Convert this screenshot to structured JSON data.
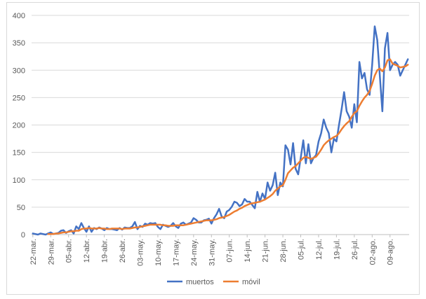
{
  "chart_data": {
    "type": "line",
    "title": "",
    "xlabel": "",
    "ylabel": "",
    "ylim": [
      0,
      400
    ],
    "yticks": [
      0,
      50,
      100,
      150,
      200,
      250,
      300,
      350,
      400
    ],
    "grid": true,
    "legend_position": "bottom",
    "x_start": "22-mar.",
    "x_tick_labels": [
      "22-mar.",
      "29-mar.",
      "05-abr.",
      "12-abr.",
      "19-abr.",
      "26-abr.",
      "03-may.",
      "10-may.",
      "17-may.",
      "24-may.",
      "31-may.",
      "07-jun.",
      "14-jun.",
      "21-jun.",
      "28-jun.",
      "05-jul.",
      "12-jul.",
      "19-jul.",
      "26-jul.",
      "02-ago.",
      "09-ago."
    ],
    "series": [
      {
        "name": "muertos",
        "color": "#4472c4",
        "values": [
          2,
          1,
          0,
          2,
          1,
          0,
          2,
          4,
          1,
          2,
          3,
          7,
          8,
          3,
          6,
          8,
          2,
          15,
          10,
          21,
          12,
          5,
          15,
          5,
          12,
          10,
          13,
          11,
          8,
          12,
          10,
          10,
          9,
          8,
          12,
          9,
          13,
          12,
          12,
          15,
          23,
          10,
          16,
          14,
          20,
          18,
          21,
          20,
          21,
          14,
          10,
          18,
          16,
          14,
          16,
          21,
          15,
          12,
          20,
          22,
          18,
          20,
          22,
          30,
          27,
          22,
          22,
          26,
          27,
          29,
          20,
          30,
          37,
          47,
          33,
          30,
          42,
          45,
          51,
          60,
          58,
          52,
          55,
          65,
          60,
          60,
          54,
          48,
          78,
          60,
          75,
          65,
          95,
          80,
          90,
          113,
          72,
          95,
          88,
          163,
          155,
          128,
          167,
          120,
          110,
          140,
          172,
          130,
          165,
          130,
          140,
          145,
          170,
          185,
          210,
          195,
          185,
          150,
          175,
          170,
          200,
          228,
          260,
          225,
          215,
          195,
          238,
          205,
          315,
          285,
          295,
          265,
          255,
          310,
          380,
          355,
          290,
          225,
          340,
          368,
          300,
          310,
          315,
          310,
          290,
          300,
          310,
          320
        ]
      },
      {
        "name": "móvil",
        "color": "#ed7d31",
        "values": [
          null,
          null,
          null,
          null,
          null,
          null,
          1,
          1,
          1,
          2,
          2,
          3,
          4,
          4,
          5,
          6,
          6,
          7,
          7,
          10,
          11,
          11,
          12,
          11,
          11,
          11,
          12,
          11,
          11,
          10,
          10,
          11,
          11,
          11,
          11,
          10,
          11,
          11,
          11,
          12,
          13,
          13,
          14,
          15,
          16,
          17,
          18,
          18,
          18,
          18,
          18,
          17,
          17,
          16,
          16,
          16,
          17,
          17,
          17,
          17,
          18,
          19,
          20,
          21,
          22,
          23,
          24,
          25,
          26,
          26,
          26,
          27,
          28,
          30,
          31,
          32,
          34,
          36,
          39,
          42,
          44,
          47,
          49,
          52,
          54,
          56,
          57,
          58,
          59,
          60,
          62,
          64,
          67,
          70,
          74,
          80,
          84,
          88,
          90,
          100,
          112,
          117,
          122,
          125,
          130,
          135,
          140,
          142,
          140,
          138,
          140,
          142,
          148,
          155,
          163,
          168,
          172,
          175,
          178,
          180,
          185,
          192,
          198,
          203,
          207,
          215,
          222,
          225,
          235,
          243,
          250,
          255,
          262,
          275,
          290,
          300,
          303,
          298,
          305,
          318,
          320,
          312,
          310,
          308,
          305,
          306,
          307,
          310
        ]
      }
    ]
  }
}
